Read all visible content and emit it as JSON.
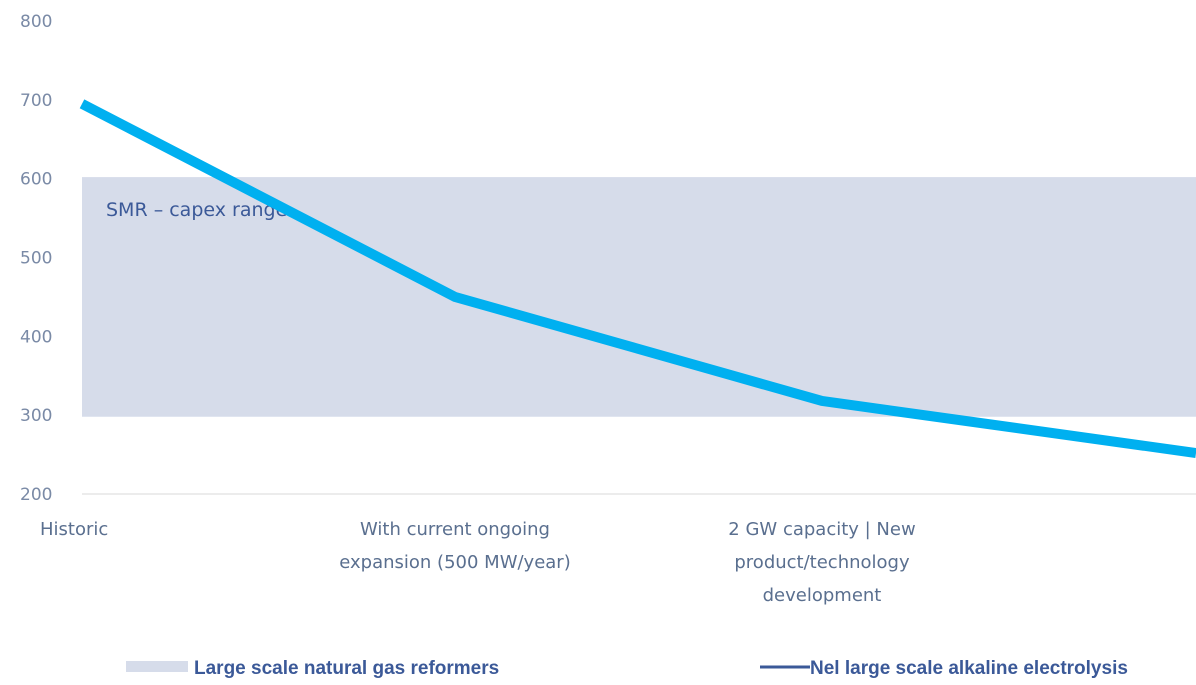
{
  "chart_data": {
    "type": "line",
    "categories": [
      [
        "Historic"
      ],
      [
        "With current ongoing",
        "expansion (500 MW/year)"
      ],
      [
        "2 GW capacity | New",
        "product/technology",
        "development"
      ],
      [
        ""
      ]
    ],
    "series": [
      {
        "name": "Nel large scale alkaline electrolysis",
        "type": "line",
        "values": [
          695,
          450,
          318,
          252
        ],
        "color": "#00b0f0"
      },
      {
        "name": "Large scale natural gas reformers",
        "type": "band",
        "range": [
          298,
          602
        ],
        "label": "SMR – capex range",
        "color": "#d6dcea"
      }
    ],
    "ylim": [
      200,
      800
    ],
    "yticks": [
      200,
      300,
      400,
      500,
      600,
      700,
      800
    ],
    "grid": false,
    "legend_position": "bottom"
  }
}
